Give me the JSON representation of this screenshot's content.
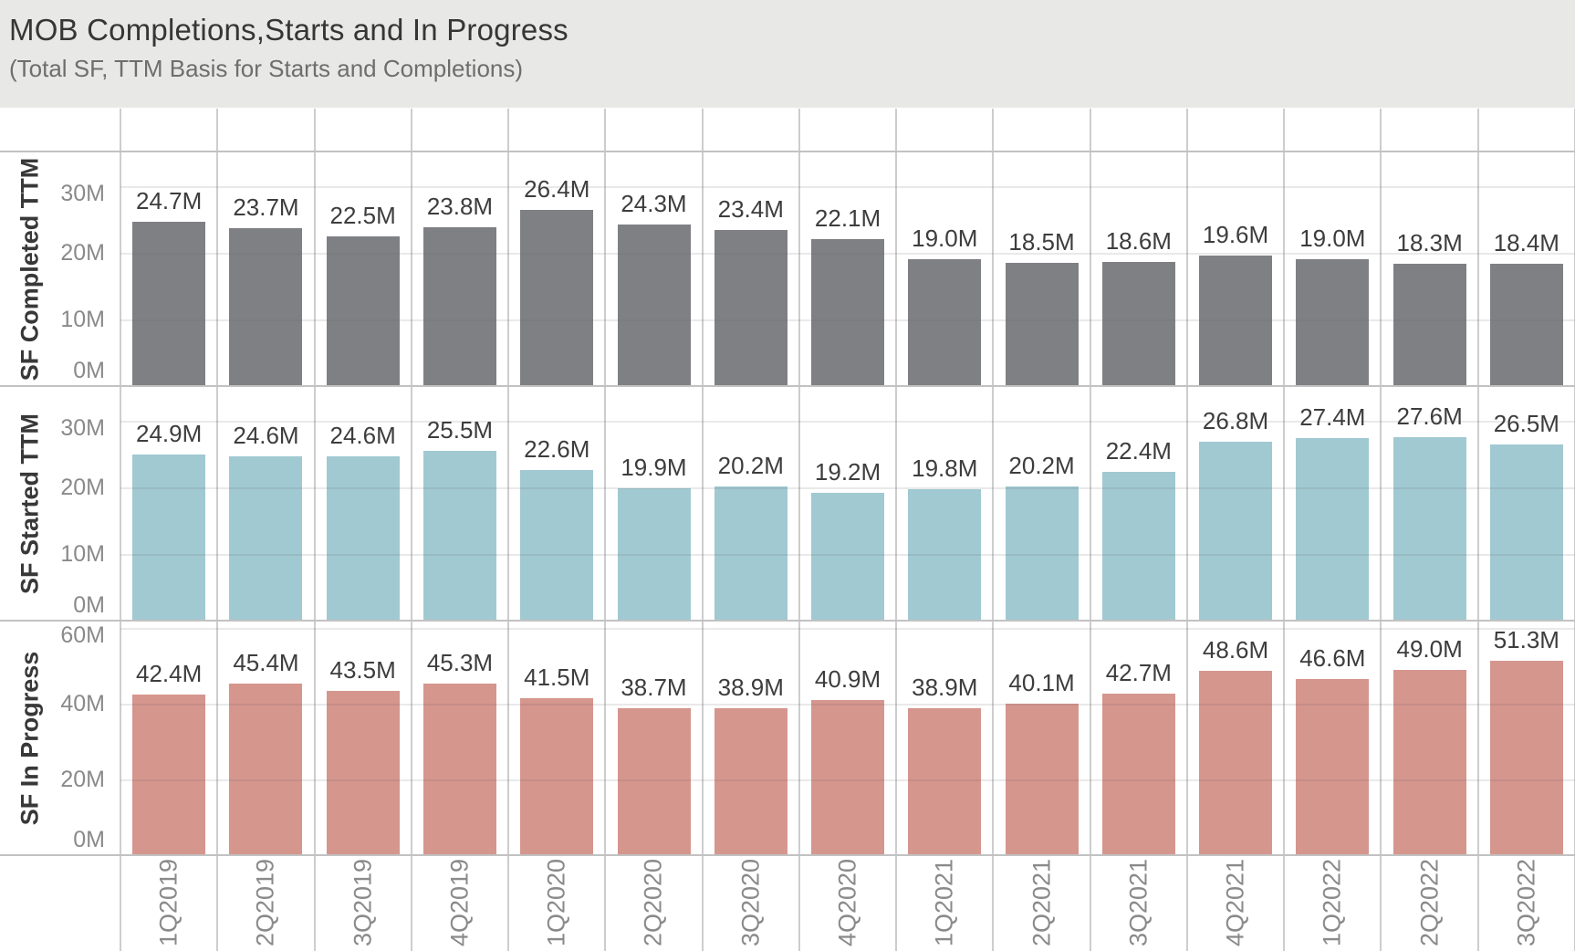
{
  "header": {
    "title": "MOB Completions,Starts and In Progress",
    "subtitle": "(Total SF, TTM Basis for Starts and Completions)"
  },
  "colors": {
    "title_band_bg": "#e8e8e6",
    "completed_bar": "#7e8084",
    "started_bar": "#a1c9d1",
    "in_progress_bar": "#d5968e",
    "grid_divider": "#c2c2c2",
    "column_divider": "#cdcdcd",
    "tick_text": "#8a8a8a",
    "value_text": "#3d3d3d"
  },
  "chart_data": {
    "type": "bar",
    "title": "MOB Completions,Starts and In Progress",
    "subtitle": "(Total SF, TTM Basis for Starts and Completions)",
    "layout": "three vertically stacked row panels sharing one categorical x axis",
    "legend": "none",
    "grid": true,
    "categories": [
      "1Q2019",
      "2Q2019",
      "3Q2019",
      "4Q2019",
      "1Q2020",
      "2Q2020",
      "3Q2020",
      "4Q2020",
      "1Q2021",
      "2Q2021",
      "3Q2021",
      "4Q2021",
      "1Q2022",
      "2Q2022",
      "3Q2022"
    ],
    "xlabel": "",
    "series": [
      {
        "name": "SF Completed TTM",
        "color": "#7e8084",
        "unit": "M SF",
        "ylim": [
          0,
          30
        ],
        "y_tick_values": [
          0,
          10,
          20,
          30
        ],
        "y_tick_labels": [
          "0M",
          "10M",
          "20M",
          "30M"
        ],
        "values": [
          24.7,
          23.7,
          22.5,
          23.8,
          26.4,
          24.3,
          23.4,
          22.1,
          19.0,
          18.5,
          18.6,
          19.6,
          19.0,
          18.3,
          18.4
        ],
        "value_labels": [
          "24.7M",
          "23.7M",
          "22.5M",
          "23.8M",
          "26.4M",
          "24.3M",
          "23.4M",
          "22.1M",
          "19.0M",
          "18.5M",
          "18.6M",
          "19.6M",
          "19.0M",
          "18.3M",
          "18.4M"
        ]
      },
      {
        "name": "SF Started TTM",
        "color": "#a1c9d1",
        "unit": "M SF",
        "ylim": [
          0,
          30
        ],
        "y_tick_values": [
          0,
          10,
          20,
          30
        ],
        "y_tick_labels": [
          "0M",
          "10M",
          "20M",
          "30M"
        ],
        "values": [
          24.9,
          24.6,
          24.6,
          25.5,
          22.6,
          19.9,
          20.2,
          19.2,
          19.8,
          20.2,
          22.4,
          26.8,
          27.4,
          27.6,
          26.5
        ],
        "value_labels": [
          "24.9M",
          "24.6M",
          "24.6M",
          "25.5M",
          "22.6M",
          "19.9M",
          "20.2M",
          "19.2M",
          "19.8M",
          "20.2M",
          "22.4M",
          "26.8M",
          "27.4M",
          "27.6M",
          "26.5M"
        ]
      },
      {
        "name": "SF In Progress",
        "color": "#d5968e",
        "unit": "M SF",
        "ylim": [
          0,
          60
        ],
        "y_tick_values": [
          0,
          20,
          40,
          60
        ],
        "y_tick_labels": [
          "0M",
          "20M",
          "40M",
          "60M"
        ],
        "values": [
          42.4,
          45.4,
          43.5,
          45.3,
          41.5,
          38.7,
          38.9,
          40.9,
          38.9,
          40.1,
          42.7,
          48.6,
          46.6,
          49.0,
          51.3
        ],
        "value_labels": [
          "42.4M",
          "45.4M",
          "43.5M",
          "45.3M",
          "41.5M",
          "38.7M",
          "38.9M",
          "40.9M",
          "38.9M",
          "40.1M",
          "42.7M",
          "48.6M",
          "46.6M",
          "49.0M",
          "51.3M"
        ]
      }
    ]
  }
}
